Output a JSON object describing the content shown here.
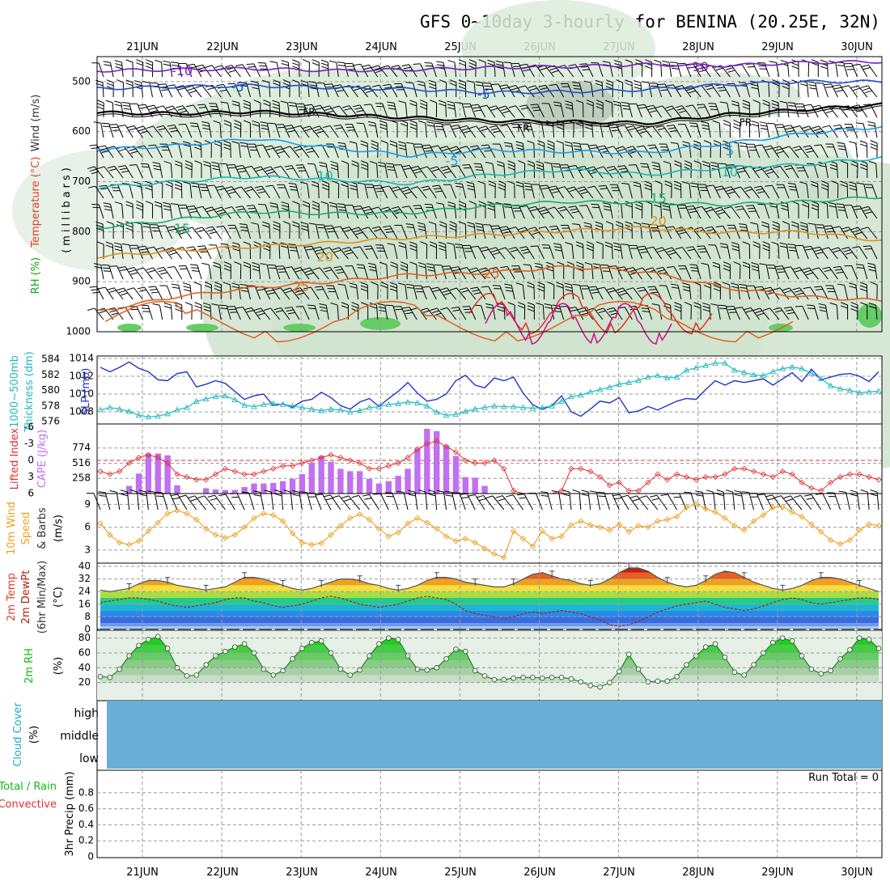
{
  "title": "GFS 0~10day 3-hourly for BENINA (20.25E, 32N)",
  "dates": [
    "21JUN",
    "22JUN",
    "23JUN",
    "24JUN",
    "25JUN",
    "26JUN",
    "27JUN",
    "28JUN",
    "29JUN",
    "30JUN"
  ],
  "colors": {
    "purple": "#7a1fc0",
    "blue": "#1f4fd0",
    "lightblue": "#1f9ae8",
    "teal": "#1ab7b0",
    "green": "#1faa70",
    "orange": "#e09020",
    "red": "#e03020",
    "slp": "#2233cc",
    "thick": "#22b8c0",
    "cape": "#c070f0",
    "li": "#e03030",
    "wind": "#f0a020",
    "rh2": "#11cc11",
    "cloud": "#6aaed8",
    "dewpt": "#aa2211"
  },
  "panel_labels": {
    "upper": {
      "rh": "RH (%)",
      "temp": "Temperature (°C)",
      "wind": "Wind (m/s)",
      "unit": "(millibars)"
    },
    "thick": {
      "a": "1000~500mb",
      "b": "Thickness (dm)",
      "c": "SLP (mb)"
    },
    "cape": {
      "a": "Lifted Index",
      "b": "CAPE (J/kg)"
    },
    "wind10": {
      "a": "10m Wind",
      "b": "Speed",
      "c": "& Barbs",
      "d": "(m/s)"
    },
    "temp2m": {
      "a": "2m Temp",
      "b": "2m DewPt",
      "c": "(6hr Min/Max)",
      "d": "(°C)"
    },
    "rh2m": {
      "a": "2m RH",
      "b": "(%)"
    },
    "cloud": {
      "a": "Cloud Cover",
      "b": "(%)",
      "high": "high",
      "middle": "middle",
      "low": "low"
    },
    "precip": {
      "a": "Total / Rain",
      "b": "Convective",
      "c": "3hr Precip (mm)",
      "run_total": "Run Total = 0"
    }
  },
  "chart_data": [
    {
      "type": "line",
      "title": "Upper air cross-section",
      "ylabel": "millibars",
      "ylim": [
        1000,
        450
      ],
      "yticks": [
        500,
        600,
        700,
        800,
        900,
        1000
      ],
      "contour_labels": [
        {
          "text": "-10",
          "color": "#7a1fc0",
          "day": 0.5,
          "p": 480
        },
        {
          "text": "-10",
          "color": "#7a1fc0",
          "day": 7.0,
          "p": 472
        },
        {
          "text": "-5",
          "color": "#1f4fd0",
          "day": 1.2,
          "p": 512
        },
        {
          "text": "-5",
          "color": "#1f4fd0",
          "day": 4.3,
          "p": 527
        },
        {
          "text": "FR",
          "color": "#000000",
          "day": 2.1,
          "p": 562
        },
        {
          "text": "FR",
          "color": "#000000",
          "day": 4.8,
          "p": 594
        },
        {
          "text": "FR",
          "color": "#000000",
          "day": 7.6,
          "p": 583
        },
        {
          "text": "-5",
          "color": "#1f9ae8",
          "day": 3.9,
          "p": 660
        },
        {
          "text": "5",
          "color": "#1f9ae8",
          "day": 7.4,
          "p": 640
        },
        {
          "text": "10",
          "color": "#1ab7b0",
          "day": 2.3,
          "p": 690
        },
        {
          "text": "10",
          "color": "#1ab7b0",
          "day": 7.4,
          "p": 682
        },
        {
          "text": "15",
          "color": "#1faa70",
          "day": 0.5,
          "p": 795
        },
        {
          "text": "15",
          "color": "#1faa70",
          "day": 6.5,
          "p": 735
        },
        {
          "text": "20",
          "color": "#e09020",
          "day": 2.3,
          "p": 852
        },
        {
          "text": "20",
          "color": "#e09020",
          "day": 6.5,
          "p": 780
        },
        {
          "text": "25",
          "color": "#e06020",
          "day": 2.0,
          "p": 911
        },
        {
          "text": "25",
          "color": "#e06020",
          "day": 4.4,
          "p": 885
        }
      ],
      "isotherms": [
        {
          "label": "-10",
          "color": "#7a1fc0",
          "p": [
            478,
            476,
            474,
            478,
            476,
            472,
            470,
            466,
            468,
            462,
            460
          ]
        },
        {
          "label": "-5",
          "color": "#1f4fd0",
          "p": [
            514,
            510,
            508,
            512,
            515,
            522,
            520,
            516,
            506,
            500,
            500
          ]
        },
        {
          "label": "FR",
          "color": "#000000",
          "p": [
            562,
            564,
            560,
            566,
            572,
            578,
            580,
            583,
            566,
            556,
            546
          ]
        },
        {
          "label": "5",
          "color": "#1f9ae8",
          "p": [
            636,
            628,
            614,
            632,
            648,
            636,
            640,
            642,
            624,
            604,
            590
          ]
        },
        {
          "label": "10",
          "color": "#1ab7b0",
          "p": [
            712,
            700,
            690,
            696,
            704,
            686,
            676,
            686,
            672,
            666,
            652
          ]
        },
        {
          "label": "15",
          "color": "#1faa70",
          "p": [
            792,
            776,
            760,
            764,
            762,
            748,
            740,
            742,
            746,
            740,
            730
          ]
        },
        {
          "label": "20",
          "color": "#e09020",
          "p": [
            850,
            838,
            830,
            822,
            812,
            806,
            798,
            792,
            802,
            800,
            818
          ]
        },
        {
          "label": "25",
          "color": "#e06020",
          "p": [
            960,
            930,
            912,
            900,
            886,
            882,
            870,
            880,
            912,
            930,
            938
          ]
        }
      ]
    },
    {
      "type": "line",
      "title": "1000~500mb Thickness and SLP",
      "ylabel": "Thickness (dm) / SLP (mb)",
      "thickness_ylim": [
        576,
        584
      ],
      "thickness_yticks": [
        576,
        578,
        580,
        582,
        584
      ],
      "slp_ylim": [
        1007,
        1014
      ],
      "slp_yticks": [
        1008,
        1010,
        1012,
        1014
      ],
      "slp": [
        1013.0,
        1012.5,
        1013.0,
        1013.6,
        1012.9,
        1012.5,
        1011.6,
        1011.5,
        1012.3,
        1012.5,
        1010.8,
        1011.1,
        1011.5,
        1011.2,
        1010.3,
        1009.4,
        1009.8,
        1010.0,
        1008.7,
        1008.9,
        1008.5,
        1009.2,
        1009.4,
        1010.2,
        1009.6,
        1008.7,
        1008.3,
        1009.1,
        1009.5,
        1008.6,
        1009.5,
        1010.3,
        1011.3,
        1010.1,
        1009.2,
        1009.4,
        1010.0,
        1011.5,
        1012.1,
        1011.0,
        1010.7,
        1011.8,
        1011.5,
        1011.9,
        1010.1,
        1008.8,
        1008.3,
        1008.7,
        1009.8,
        1008.0,
        1007.5,
        1008.3,
        1009.2,
        1009.0,
        1009.6,
        1007.9,
        1008.1,
        1008.6,
        1008.2,
        1008.7,
        1009.2,
        1009.5,
        1009.4,
        1010.5,
        1011.5,
        1011.0,
        1011.5,
        1011.3,
        1011.5,
        1011.7,
        1011.0,
        1011.7,
        1012.4,
        1011.4,
        1012.8,
        1011.6,
        1011.9,
        1012.2,
        1012.3,
        1012.0,
        1011.4,
        1012.5
      ],
      "thickness": [
        577.5,
        577.8,
        577.6,
        577.3,
        576.8,
        576.6,
        576.7,
        577.0,
        577.5,
        577.8,
        578.6,
        578.9,
        579.2,
        579.3,
        578.8,
        578.1,
        577.9,
        578.2,
        578.3,
        578.2,
        578.0,
        577.8,
        577.6,
        577.4,
        577.6,
        577.5,
        577.2,
        577.4,
        577.8,
        577.9,
        578.2,
        578.3,
        578.5,
        578.4,
        578.0,
        577.2,
        576.8,
        576.9,
        577.3,
        577.6,
        577.8,
        578.0,
        577.9,
        577.9,
        577.8,
        577.7,
        577.8,
        578.0,
        578.6,
        579.2,
        579.4,
        579.8,
        580.1,
        580.4,
        580.8,
        581.0,
        581.3,
        581.7,
        581.9,
        581.6,
        581.7,
        582.6,
        582.9,
        583.2,
        583.5,
        583.5,
        582.6,
        582.3,
        582.0,
        581.9,
        582.4,
        582.8,
        583.0,
        582.8,
        582.2,
        581.5,
        580.6,
        580.2,
        580.0,
        579.7,
        579.8,
        579.9
      ]
    },
    {
      "type": "bar",
      "title": "CAPE and Lifted Index",
      "ylabel": "CAPE (J/kg) / Lifted Index",
      "cape_yticks": [
        258,
        516,
        774
      ],
      "li_yticks": [
        6,
        3,
        0,
        -3,
        -6
      ],
      "cape": [
        0,
        0,
        0,
        130,
        340,
        680,
        680,
        650,
        140,
        0,
        0,
        90,
        70,
        60,
        60,
        110,
        170,
        170,
        180,
        210,
        250,
        330,
        520,
        640,
        540,
        420,
        380,
        380,
        250,
        170,
        210,
        300,
        420,
        760,
        1100,
        1060,
        820,
        640,
        280,
        270,
        130,
        0,
        0,
        0,
        0,
        0,
        0,
        0,
        0,
        0,
        0,
        0,
        0,
        0,
        0,
        0,
        0,
        0,
        0,
        0,
        0,
        0,
        0,
        0,
        15,
        0,
        0,
        0,
        0,
        0,
        0,
        0,
        0,
        0,
        0,
        0,
        0,
        0,
        0,
        0,
        0,
        0
      ],
      "li": [
        2,
        2.5,
        2,
        0.5,
        -0.5,
        -1,
        -0.5,
        0.5,
        2.5,
        3,
        3.5,
        3.5,
        2.5,
        1.5,
        2,
        2.5,
        2.5,
        2,
        1.5,
        1,
        1,
        0.5,
        0,
        -0.5,
        -1,
        -0.5,
        0,
        0.5,
        1.5,
        1.5,
        1,
        0.5,
        -0.5,
        -2,
        -3,
        -3.5,
        -2.5,
        -1.5,
        0,
        0.5,
        0.5,
        0,
        1.5,
        5.5,
        8,
        9,
        9,
        8,
        5.5,
        1.5,
        1.5,
        2,
        3,
        4.5,
        4,
        5.5,
        5.5,
        4,
        2.5,
        3.5,
        2.5,
        3,
        3.5,
        3,
        3,
        2.5,
        1.5,
        1.5,
        2,
        2.5,
        3,
        2,
        2.5,
        4,
        5,
        5.5,
        4,
        3,
        2.5,
        2.5,
        3,
        3.5
      ]
    },
    {
      "type": "line",
      "title": "10m Wind Speed",
      "ylabel": "m/s",
      "ylim": [
        1.5,
        10
      ],
      "yticks": [
        3,
        6,
        9
      ],
      "values": [
        6.5,
        5.0,
        4.0,
        3.7,
        4.2,
        5.5,
        6.6,
        7.8,
        8.2,
        7.8,
        7.0,
        5.8,
        5.0,
        4.6,
        5.0,
        6.0,
        7.2,
        7.8,
        7.6,
        6.8,
        5.2,
        4.0,
        3.7,
        3.9,
        5.0,
        6.2,
        7.2,
        7.7,
        7.0,
        5.8,
        4.8,
        5.3,
        6.5,
        7.2,
        6.6,
        5.8,
        4.8,
        4.2,
        4.5,
        4.0,
        3.2,
        2.5,
        2.0,
        5.5,
        4.5,
        3.5,
        5.5,
        4.5,
        4.8,
        6.3,
        6.8,
        6.3,
        6.0,
        5.6,
        6.4,
        5.4,
        6.2,
        6.0,
        6.8,
        7.0,
        7.4,
        8.6,
        9.1,
        8.4,
        8.0,
        7.2,
        6.2,
        5.6,
        6.8,
        7.6,
        8.6,
        8.7,
        8.0,
        7.4,
        6.4,
        5.4,
        4.3,
        3.8,
        4.3,
        5.6,
        6.4,
        6.2
      ]
    },
    {
      "type": "area",
      "title": "2m Temp and DewPt",
      "ylabel": "°C",
      "ylim": [
        0,
        40
      ],
      "yticks": [
        0,
        8,
        16,
        24,
        32,
        40
      ],
      "temp": [
        25,
        24,
        25,
        26,
        29,
        31,
        31,
        30,
        28,
        27,
        26,
        25,
        26,
        27,
        30,
        33,
        33,
        32,
        30,
        28,
        26,
        25,
        26,
        28,
        30,
        32,
        32,
        31,
        29,
        28,
        26,
        25,
        26,
        28,
        31,
        33,
        33,
        32,
        30,
        29,
        28,
        27,
        27,
        29,
        32,
        35,
        36,
        34,
        32,
        31,
        29,
        28,
        29,
        32,
        36,
        39,
        39,
        37,
        33,
        30,
        28,
        27,
        28,
        31,
        35,
        37,
        36,
        33,
        30,
        28,
        26,
        25,
        26,
        28,
        31,
        33,
        33,
        32,
        30,
        28,
        26,
        24
      ],
      "dewpt": [
        17,
        18,
        19,
        20,
        20,
        19,
        18,
        16,
        15,
        14,
        15,
        16,
        17,
        19,
        20,
        20,
        18,
        17,
        15,
        14,
        15,
        16,
        18,
        20,
        21,
        20,
        18,
        16,
        15,
        14,
        15,
        16,
        18,
        20,
        21,
        20,
        19,
        16,
        12,
        10,
        9,
        8,
        7,
        8,
        10,
        11,
        10,
        11,
        12,
        11,
        10,
        8,
        6,
        3,
        2,
        3,
        5,
        8,
        11,
        13,
        15,
        16,
        17,
        18,
        16,
        14,
        13,
        12,
        13,
        15,
        17,
        19,
        20,
        19,
        17,
        16,
        17,
        18,
        19,
        20,
        20,
        19
      ]
    },
    {
      "type": "area",
      "title": "2m RH",
      "ylabel": "%",
      "ylim": [
        0,
        85
      ],
      "yticks": [
        20,
        40,
        60,
        80
      ],
      "values": [
        28,
        27,
        38,
        56,
        70,
        78,
        82,
        66,
        40,
        29,
        30,
        44,
        56,
        62,
        68,
        72,
        60,
        38,
        30,
        36,
        52,
        66,
        74,
        76,
        60,
        38,
        30,
        37,
        56,
        72,
        80,
        78,
        56,
        38,
        37,
        40,
        52,
        65,
        62,
        36,
        29,
        24,
        24,
        26,
        27,
        27,
        26,
        27,
        27,
        25,
        21,
        16,
        14,
        20,
        35,
        58,
        38,
        21,
        22,
        22,
        28,
        44,
        56,
        68,
        72,
        54,
        34,
        30,
        44,
        60,
        74,
        80,
        76,
        56,
        38,
        32,
        36,
        52,
        64,
        80,
        78,
        66
      ]
    },
    {
      "type": "heatmap",
      "title": "Cloud Cover",
      "ylabel": "%",
      "categories": [
        "high",
        "middle",
        "low"
      ],
      "values": [
        0,
        0,
        0
      ]
    },
    {
      "type": "bar",
      "title": "3hr Precip",
      "ylabel": "3hr Precip (mm)",
      "ylim": [
        0,
        1
      ],
      "yticks": [
        0,
        0.2,
        0.4,
        0.6,
        0.8
      ],
      "values": [
        0,
        0,
        0,
        0,
        0,
        0,
        0,
        0,
        0,
        0
      ],
      "annotation": "Run Total = 0"
    }
  ]
}
